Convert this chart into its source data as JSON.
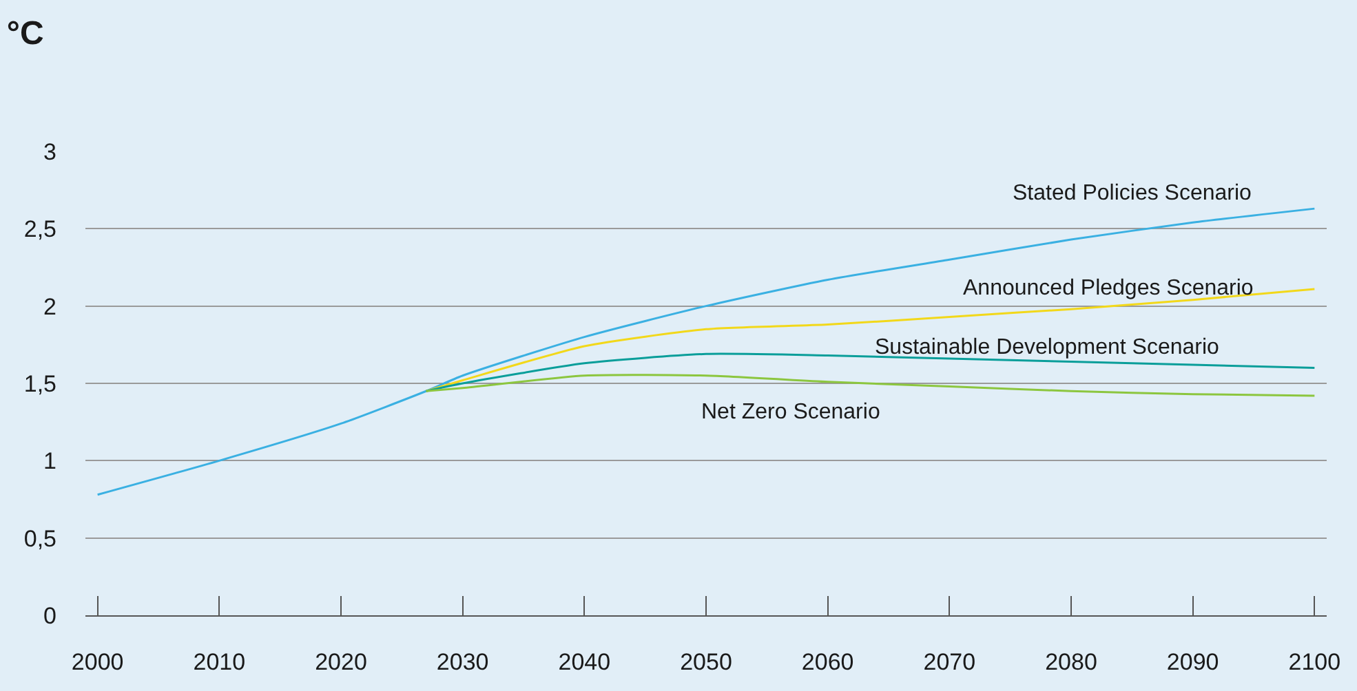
{
  "chart_data": {
    "type": "line",
    "title": "°C",
    "x": [
      2000,
      2010,
      2020,
      2027,
      2030,
      2040,
      2050,
      2060,
      2070,
      2080,
      2090,
      2100
    ],
    "series": [
      {
        "name": "Stated Policies Scenario",
        "color": "#3ab0e2",
        "values": [
          0.78,
          1.0,
          1.24,
          1.45,
          1.55,
          1.8,
          2.0,
          2.17,
          2.3,
          2.43,
          2.54,
          2.63
        ]
      },
      {
        "name": "Announced Pledges Scenario",
        "color": "#f2d81a",
        "values": [
          null,
          null,
          null,
          1.45,
          1.52,
          1.74,
          1.85,
          1.88,
          1.93,
          1.98,
          2.04,
          2.11
        ]
      },
      {
        "name": "Sustainable Development Scenario",
        "color": "#0a9e9a",
        "values": [
          null,
          null,
          null,
          1.45,
          1.5,
          1.63,
          1.69,
          1.68,
          1.66,
          1.64,
          1.62,
          1.6
        ]
      },
      {
        "name": "Net Zero Scenario",
        "color": "#8cc63f",
        "values": [
          null,
          null,
          null,
          1.45,
          1.47,
          1.55,
          1.55,
          1.51,
          1.48,
          1.45,
          1.43,
          1.42
        ]
      }
    ],
    "xlim": [
      1999,
      2101
    ],
    "xticks": [
      2000,
      2010,
      2020,
      2030,
      2040,
      2050,
      2060,
      2070,
      2080,
      2090,
      2100
    ],
    "ylim": [
      0,
      3
    ],
    "yticks": [
      0,
      {
        "value": 0.5,
        "label": "0,5"
      },
      1,
      {
        "value": 1.5,
        "label": "1,5"
      },
      2,
      {
        "value": 2.5,
        "label": "2,5"
      },
      3
    ],
    "grid": "y",
    "legend": false,
    "line_style": "solid",
    "marker": "none"
  }
}
